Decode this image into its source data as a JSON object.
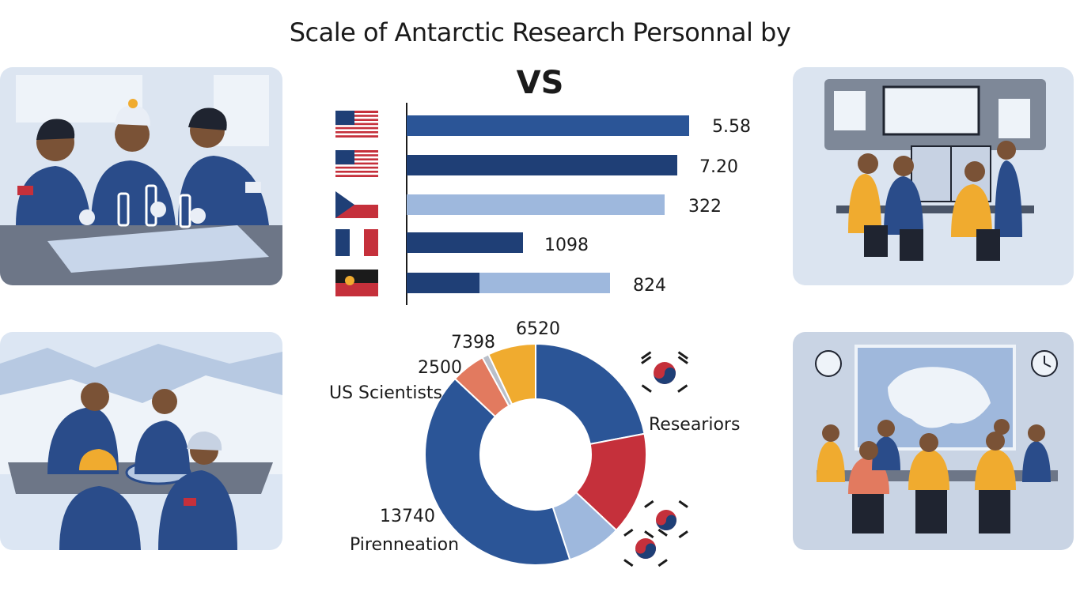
{
  "title": "Scale of Antarctic Research Personnal by",
  "subtitle": "VS",
  "colors": {
    "dark_blue": "#1f3f76",
    "mid_blue": "#2b5597",
    "light_blue": "#9eb8dd",
    "red": "#c5303b",
    "orange": "#f0ab2f",
    "salmon": "#e27a5f",
    "grey": "#b9bfc9"
  },
  "chart_data": [
    {
      "type": "bar",
      "orientation": "horizontal",
      "categories": [
        "US flag",
        "US flag",
        "Czech flag",
        "France flag",
        "Red/black flag"
      ],
      "values": [
        5.58,
        7.2,
        322,
        1098,
        824
      ],
      "value_labels": [
        "5.58",
        "7.20",
        "322",
        "1098",
        "824"
      ],
      "grid": false
    },
    {
      "type": "pie",
      "subtype": "donut",
      "labels": [
        "6520",
        "7398",
        "2500",
        "US Scientists",
        "13740",
        "Pirenneation",
        "Researiors"
      ],
      "slices": [
        {
          "value": 22,
          "color": "#2b5597"
        },
        {
          "value": 15,
          "color": "#c5303b"
        },
        {
          "value": 8,
          "color": "#9eb8dd"
        },
        {
          "value": 42,
          "color": "#2b5597"
        },
        {
          "value": 5,
          "color": "#e27a5f"
        },
        {
          "value": 1,
          "color": "#b9bfc9"
        },
        {
          "value": 7,
          "color": "#f0ab2f"
        }
      ]
    }
  ],
  "flags": [
    "us-flag",
    "us-flag",
    "czech-flag",
    "france-flag",
    "red-black-flag"
  ],
  "illustrations": [
    "lab-scientists-illustration",
    "control-room-illustration",
    "field-researchers-illustration",
    "briefing-room-illustration"
  ]
}
